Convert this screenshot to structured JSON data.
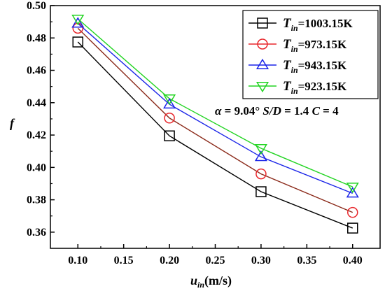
{
  "chart_data": {
    "type": "line",
    "x": [
      0.1,
      0.2,
      0.3,
      0.4
    ],
    "x_ticks": [
      "0.10",
      "0.15",
      "0.20",
      "0.25",
      "0.30",
      "0.35",
      "0.40"
    ],
    "y_ticks": [
      "0.36",
      "0.38",
      "0.40",
      "0.42",
      "0.44",
      "0.46",
      "0.48",
      "0.50"
    ],
    "xlim": [
      0.07,
      0.43
    ],
    "ylim": [
      0.35,
      0.5
    ],
    "xlabel": {
      "main": "u",
      "sub": "in",
      "unit": "(m/s)"
    },
    "ylabel": "f",
    "legend_position": "top-right",
    "annotation": {
      "alpha_symbol": "α",
      "alpha_value": " = 9.04° ",
      "sd": "S/D",
      "sd_value": " = 1.4 ",
      "c": "C",
      "c_value": " = 4"
    },
    "series": [
      {
        "name_main": "T",
        "name_sub": "in",
        "name_rest": "=1003.15K",
        "color": "#000000",
        "marker": "square",
        "values": [
          0.4775,
          0.4195,
          0.385,
          0.3625
        ]
      },
      {
        "name_main": "T",
        "name_sub": "in",
        "name_rest": "=973.15K",
        "color": "#e8262b",
        "marker": "circle",
        "values": [
          0.486,
          0.4305,
          0.396,
          0.3722
        ]
      },
      {
        "name_main": "T",
        "name_sub": "in",
        "name_rest": "=943.15K",
        "color": "#1a24e8",
        "marker": "triangle-up",
        "values": [
          0.489,
          0.439,
          0.4065,
          0.384
        ]
      },
      {
        "name_main": "T",
        "name_sub": "in",
        "name_rest": "=923.15K",
        "color": "#22d422",
        "marker": "triangle-down",
        "values": [
          0.4918,
          0.4425,
          0.4118,
          0.388
        ]
      }
    ],
    "line_colors": [
      "#000000",
      "#8b2a1a",
      "#1a24e8",
      "#22d422"
    ]
  }
}
